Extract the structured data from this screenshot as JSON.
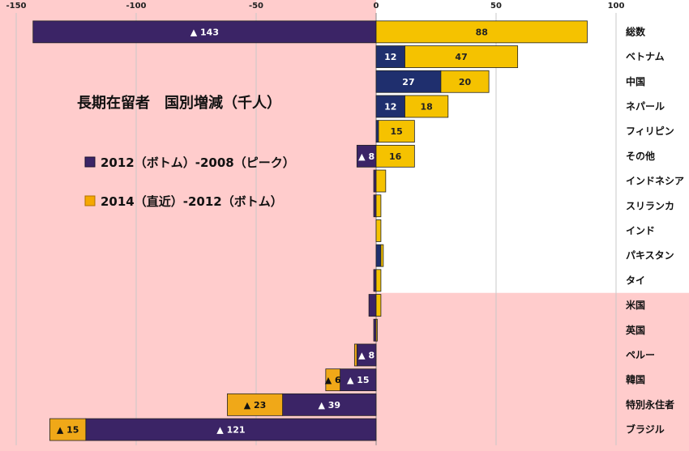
{
  "chart_data": {
    "type": "bar",
    "orientation": "horizontal",
    "stacked": true,
    "title": "長期在留者　国別増減（千人）",
    "xlim": [
      -150,
      100
    ],
    "xticks": [
      "-150",
      "-100",
      "-50",
      "0",
      "50",
      "100"
    ],
    "xtick_values": [
      -150,
      -100,
      -50,
      0,
      50,
      100
    ],
    "grid": true,
    "legend_position": "left-center",
    "colors": {
      "series1_fill": "#3b2466",
      "series1_pos_fill": "#1f2f6e",
      "series2_fill": "#f5c200",
      "series2_neg_fill": "#f0a818",
      "bg_pink": "#ffcccc",
      "bg_white": "#ffffff"
    },
    "categories": [
      "総数",
      "ベトナム",
      "中国",
      "ネパール",
      "フィリピン",
      "その他",
      "インドネシア",
      "スリランカ",
      "インド",
      "パキスタン",
      "タイ",
      "米国",
      "英国",
      "ペルー",
      "韓国",
      "特別永住者",
      "ブラジル"
    ],
    "series": [
      {
        "name": "2012（ボトム）-2008（ピーク）",
        "values": [
          -143,
          12,
          27,
          12,
          1,
          -8,
          -1,
          -1,
          0,
          2,
          -1,
          -3,
          -1,
          -8,
          -15,
          -39,
          -121
        ],
        "labels": [
          "▲ 143",
          "12",
          "27",
          "12",
          "",
          "▲ 8",
          "",
          "",
          "",
          "",
          "",
          "",
          "",
          "▲ 8",
          "▲ 15",
          "▲ 39",
          "▲ 121"
        ]
      },
      {
        "name": "2014（直近）-2012（ボトム）",
        "values": [
          88,
          47,
          20,
          18,
          15,
          16,
          4,
          2,
          2,
          1,
          2,
          2,
          0.5,
          -1,
          -6,
          -23,
          -15
        ],
        "labels": [
          "88",
          "47",
          "20",
          "18",
          "15",
          "16",
          "",
          "",
          "",
          "",
          "",
          "",
          "",
          "",
          "▲ 6",
          "▲ 23",
          "▲ 15"
        ]
      }
    ]
  }
}
